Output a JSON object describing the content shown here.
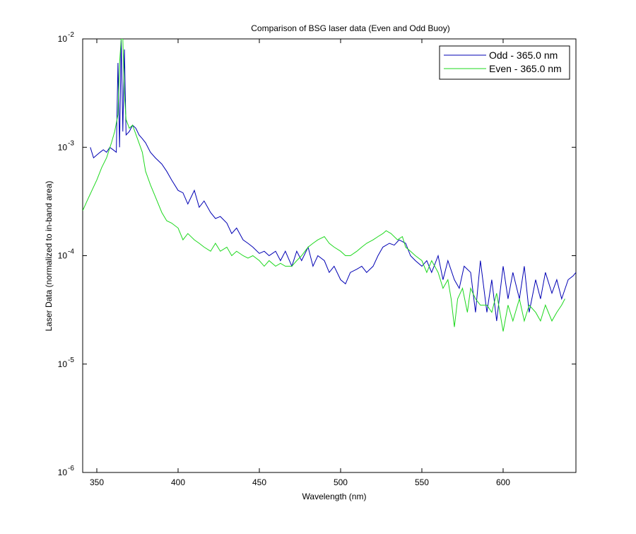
{
  "chart_data": {
    "type": "line",
    "title": "Comparison of BSG laser data (Even and Odd Buoy)",
    "x_label": "Wavelength (nm)",
    "y_label": "Laser Data (normalized to in-band area)",
    "xlim": [
      341.3,
      644.8
    ],
    "ylim": [
      1e-06,
      0.01
    ],
    "xticks": [
      350,
      400,
      450,
      500,
      550,
      600
    ],
    "yticks": [
      {
        "value": 0.01,
        "label": "10^-2"
      },
      {
        "value": 0.001,
        "label": "10^-3"
      },
      {
        "value": 0.0001,
        "label": "10^-4"
      },
      {
        "value": 1e-05,
        "label": "10^-5"
      },
      {
        "value": 1e-06,
        "label": "10^-6"
      }
    ],
    "log_y": true,
    "grid": false,
    "legend": "upper right",
    "series": [
      {
        "name": "Odd - 365.0 nm",
        "color": "#0000b4",
        "x": [
          346,
          348,
          350,
          352,
          354,
          356,
          358,
          360,
          362,
          363,
          364,
          365,
          366,
          367,
          368,
          370,
          372,
          374,
          376,
          378,
          380,
          383,
          386,
          390,
          393,
          396,
          400,
          403,
          406,
          410,
          413,
          416,
          420,
          423,
          426,
          430,
          433,
          436,
          440,
          443,
          446,
          450,
          453,
          456,
          460,
          463,
          466,
          470,
          473,
          476,
          480,
          483,
          486,
          490,
          493,
          496,
          500,
          503,
          506,
          510,
          513,
          516,
          520,
          523,
          526,
          530,
          533,
          536,
          540,
          543,
          546,
          550,
          553,
          556,
          560,
          563,
          566,
          570,
          573,
          576,
          580,
          583,
          586,
          590,
          593,
          596,
          600,
          603,
          606,
          610,
          613,
          616,
          620,
          623,
          626,
          630,
          633,
          636,
          640,
          643,
          644.8
        ],
        "values": [
          0.001,
          0.0008,
          0.00085,
          0.0009,
          0.00095,
          0.0009,
          0.001,
          0.00095,
          0.0009,
          0.006,
          0.001,
          0.01,
          0.0014,
          0.008,
          0.0013,
          0.0014,
          0.0016,
          0.0015,
          0.0013,
          0.0012,
          0.0011,
          0.0009,
          0.0008,
          0.0007,
          0.0006,
          0.0005,
          0.0004,
          0.00038,
          0.0003,
          0.0004,
          0.00028,
          0.00032,
          0.00025,
          0.00022,
          0.00023,
          0.0002,
          0.00016,
          0.00018,
          0.00014,
          0.00013,
          0.00012,
          0.000105,
          0.00011,
          0.0001,
          0.00011,
          9e-05,
          0.00011,
          8e-05,
          0.00011,
          9e-05,
          0.00012,
          8e-05,
          0.0001,
          9e-05,
          7e-05,
          8e-05,
          6e-05,
          5.5e-05,
          7e-05,
          7.5e-05,
          8e-05,
          7e-05,
          8e-05,
          0.0001,
          0.00012,
          0.00013,
          0.000125,
          0.00014,
          0.00013,
          0.0001,
          9e-05,
          8e-05,
          9e-05,
          7e-05,
          0.0001,
          6e-05,
          9e-05,
          6e-05,
          5e-05,
          8e-05,
          7e-05,
          3e-05,
          9e-05,
          3e-05,
          6e-05,
          2.5e-05,
          8e-05,
          4e-05,
          7e-05,
          4e-05,
          8e-05,
          3e-05,
          6e-05,
          4e-05,
          7e-05,
          4.5e-05,
          6e-05,
          4e-05,
          6e-05,
          6.5e-05,
          7e-05
        ]
      },
      {
        "name": "Even - 365.0 nm",
        "color": "#1ed81e",
        "x": [
          341.3,
          344,
          347,
          350,
          353,
          356,
          359,
          361,
          363,
          364,
          365,
          366,
          367,
          368,
          370,
          372,
          375,
          378,
          380,
          383,
          386,
          390,
          393,
          396,
          400,
          403,
          406,
          410,
          413,
          416,
          420,
          423,
          426,
          430,
          433,
          436,
          440,
          443,
          446,
          450,
          453,
          456,
          460,
          463,
          466,
          470,
          473,
          476,
          480,
          483,
          486,
          490,
          493,
          496,
          500,
          503,
          506,
          510,
          513,
          516,
          520,
          523,
          526,
          528,
          531,
          535,
          538,
          540,
          543,
          546,
          550,
          553,
          556,
          560,
          563,
          566,
          568,
          570,
          572,
          575,
          578,
          580,
          583,
          586,
          590,
          593,
          596,
          600,
          603,
          606,
          610,
          613,
          616,
          620,
          623,
          626,
          630,
          633,
          636,
          638
        ],
        "values": [
          0.00026,
          0.00032,
          0.0004,
          0.0005,
          0.00065,
          0.0008,
          0.0011,
          0.0014,
          0.002,
          0.006,
          0.01,
          0.01,
          0.003,
          0.0018,
          0.0015,
          0.0016,
          0.0012,
          0.0009,
          0.0006,
          0.00045,
          0.00035,
          0.00025,
          0.00021,
          0.0002,
          0.00018,
          0.00014,
          0.00016,
          0.00014,
          0.00013,
          0.00012,
          0.00011,
          0.00013,
          0.00011,
          0.00012,
          0.0001,
          0.00011,
          0.0001,
          9.5e-05,
          0.0001,
          9e-05,
          8e-05,
          9e-05,
          8e-05,
          8.5e-05,
          8e-05,
          8e-05,
          9e-05,
          0.0001,
          0.00012,
          0.00013,
          0.00014,
          0.00015,
          0.00013,
          0.00012,
          0.00011,
          0.0001,
          0.0001,
          0.00011,
          0.00012,
          0.00013,
          0.00014,
          0.00015,
          0.00016,
          0.00017,
          0.00016,
          0.00014,
          0.00015,
          0.00012,
          0.00011,
          0.0001,
          9e-05,
          7e-05,
          9e-05,
          7e-05,
          5e-05,
          6e-05,
          4e-05,
          2.2e-05,
          4e-05,
          5e-05,
          3e-05,
          5e-05,
          4e-05,
          3.5e-05,
          3.5e-05,
          3e-05,
          4.5e-05,
          2e-05,
          3.5e-05,
          2.5e-05,
          4e-05,
          2.5e-05,
          3.5e-05,
          3e-05,
          2.5e-05,
          3.5e-05,
          2.5e-05,
          3e-05,
          3.5e-05,
          4e-05
        ]
      }
    ]
  }
}
